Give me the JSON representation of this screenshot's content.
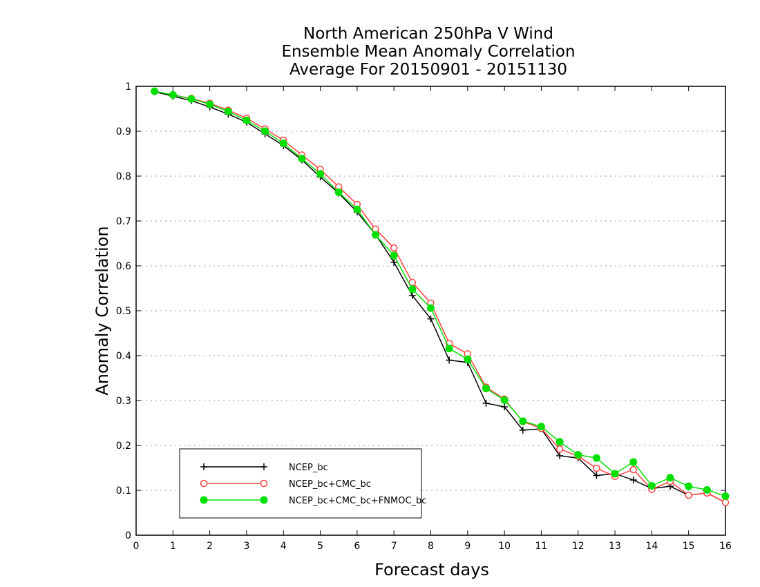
{
  "chart_data": {
    "type": "line",
    "title": [
      "North American 250hPa V Wind",
      "Ensemble Mean Anomaly Correlation",
      "Average For 20150901 - 20151130"
    ],
    "xlabel": "Forecast days",
    "ylabel": "Anomaly Correlation",
    "xlim": [
      0,
      16
    ],
    "ylim": [
      0,
      1
    ],
    "x_ticks": [
      "0",
      "1",
      "2",
      "3",
      "4",
      "5",
      "6",
      "7",
      "8",
      "9",
      "10",
      "11",
      "12",
      "13",
      "14",
      "15",
      "16"
    ],
    "y_ticks": [
      "0",
      "0.1",
      "0.2",
      "0.3",
      "0.4",
      "0.5",
      "0.6",
      "0.7",
      "0.8",
      "0.9",
      "1"
    ],
    "grid": true,
    "legend_position": "bottom-left",
    "x": [
      0.5,
      1,
      1.5,
      2,
      2.5,
      3,
      3.5,
      4,
      4.5,
      5,
      5.5,
      6,
      6.5,
      7,
      7.5,
      8,
      8.5,
      9,
      9.5,
      10,
      10.5,
      11,
      11.5,
      12,
      12.5,
      13,
      13.5,
      14,
      14.5,
      15,
      15.5,
      16
    ],
    "series": [
      {
        "name": "NCEP_bc",
        "color": "#000000",
        "marker": "plus",
        "values": [
          0.988,
          0.978,
          0.968,
          0.954,
          0.938,
          0.92,
          0.894,
          0.868,
          0.836,
          0.798,
          0.762,
          0.72,
          0.67,
          0.608,
          0.534,
          0.482,
          0.39,
          0.385,
          0.294,
          0.286,
          0.234,
          0.237,
          0.177,
          0.172,
          0.133,
          0.137,
          0.123,
          0.104,
          0.109,
          0.089,
          0.094,
          0.073
        ]
      },
      {
        "name": "NCEP_bc+CMC_bc",
        "color": "#ff4040",
        "marker": "open-circle",
        "values": [
          0.989,
          0.981,
          0.973,
          0.962,
          0.947,
          0.929,
          0.905,
          0.88,
          0.847,
          0.815,
          0.776,
          0.737,
          0.682,
          0.64,
          0.563,
          0.517,
          0.427,
          0.404,
          0.33,
          0.303,
          0.253,
          0.238,
          0.192,
          0.176,
          0.149,
          0.131,
          0.146,
          0.102,
          0.12,
          0.089,
          0.094,
          0.073
        ]
      },
      {
        "name": "NCEP_bc+CMC_bc+FNMOC_bc",
        "color": "#00e000",
        "marker": "filled-circle",
        "values": [
          0.989,
          0.981,
          0.972,
          0.96,
          0.944,
          0.924,
          0.9,
          0.873,
          0.839,
          0.805,
          0.764,
          0.726,
          0.669,
          0.623,
          0.548,
          0.506,
          0.416,
          0.392,
          0.327,
          0.301,
          0.254,
          0.242,
          0.208,
          0.179,
          0.172,
          0.137,
          0.163,
          0.11,
          0.128,
          0.109,
          0.101,
          0.087
        ]
      }
    ]
  }
}
